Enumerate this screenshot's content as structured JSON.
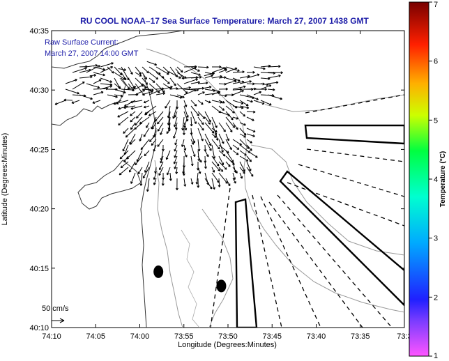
{
  "chart_data": {
    "type": "map",
    "title": "RU COOL  NOAA–17  Sea Surface Temperature:  March 27, 2007 1438 GMT",
    "xlabel": "Longitude (Degrees:Minutes)",
    "ylabel": "Latitude (Degrees:Minutes)",
    "x_ticks": [
      "74:10",
      "74:05",
      "74:00",
      "73:55",
      "73:50",
      "73:45",
      "73:40",
      "73:35",
      "73:3"
    ],
    "y_ticks": [
      "40:35",
      "40:30",
      "40:25",
      "40:20",
      "40:15",
      "40:10"
    ],
    "xlim": [
      -74.1667,
      -73.55
    ],
    "ylim": [
      40.1667,
      40.5833
    ],
    "annotation_lines": [
      "Raw Surface Current:",
      "March 27, 2007 14:00 GMT"
    ],
    "scale_label": "50 cm/s",
    "colorbar": {
      "label": "Temperature (°C)",
      "ticks": [
        "1",
        "2",
        "3",
        "4",
        "5",
        "6",
        "7"
      ],
      "range": [
        1,
        7
      ]
    },
    "current_field": {
      "description": "surface current vectors fanning out from the harbor mouth",
      "vectors": [
        {
          "lon": -74.1,
          "lat": 40.52,
          "u": 18,
          "v": 2
        },
        {
          "lon": -74.05,
          "lat": 40.53,
          "u": 22,
          "v": -4
        },
        {
          "lon": -74.0,
          "lat": 40.54,
          "u": 28,
          "v": -10
        },
        {
          "lon": -73.95,
          "lat": 40.53,
          "u": 24,
          "v": -30
        },
        {
          "lon": -73.9,
          "lat": 40.52,
          "u": 30,
          "v": 8
        },
        {
          "lon": -73.85,
          "lat": 40.5,
          "u": 26,
          "v": 2
        },
        {
          "lon": -73.93,
          "lat": 40.46,
          "u": -8,
          "v": -26
        },
        {
          "lon": -73.88,
          "lat": 40.44,
          "u": 6,
          "v": -22
        }
      ]
    },
    "stations": [
      {
        "name": "",
        "lon": -73.98,
        "lat": 40.245
      },
      {
        "name": "",
        "lon": -73.87,
        "lat": 40.225
      }
    ]
  }
}
